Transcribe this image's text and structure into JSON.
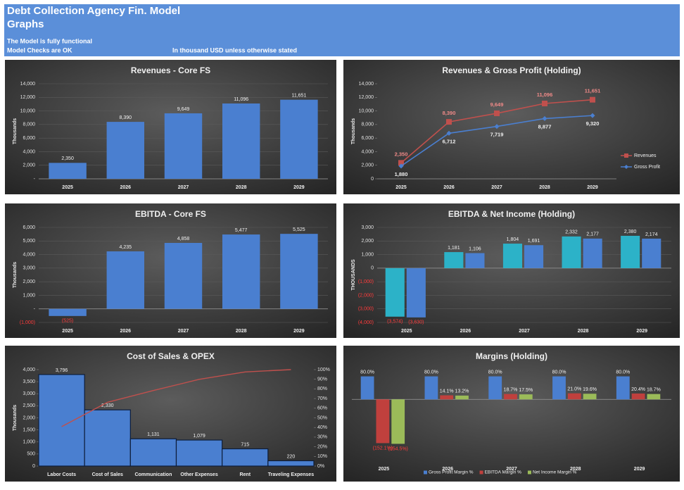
{
  "header": {
    "title": "Debt Collection Agency Fin. Model",
    "subtitle": "Graphs",
    "status": [
      "The Model is fully functional",
      "Model Checks are OK"
    ],
    "units": "In thousand USD unless otherwise stated"
  },
  "chart_data": [
    {
      "type": "bar",
      "title": "Revenues - Core FS",
      "y_label": "Thousands",
      "categories": [
        "2025",
        "2026",
        "2027",
        "2028",
        "2029"
      ],
      "values": [
        2350,
        8390,
        9649,
        11096,
        11651
      ],
      "value_labels": [
        "2,350",
        "8,390",
        "9,649",
        "11,096",
        "11,651"
      ],
      "color": "#4a7fd0",
      "ylim": [
        0,
        14000
      ],
      "yticks": [
        {
          "value": 0,
          "label": "-"
        },
        {
          "value": 2000,
          "label": "2,000"
        },
        {
          "value": 4000,
          "label": "4,000"
        },
        {
          "value": 6000,
          "label": "6,000"
        },
        {
          "value": 8000,
          "label": "8,000"
        },
        {
          "value": 10000,
          "label": "10,000"
        },
        {
          "value": 12000,
          "label": "12,000"
        },
        {
          "value": 14000,
          "label": "14,000"
        }
      ],
      "grid": true
    },
    {
      "type": "line",
      "title": "Revenues & Gross Profit (Holding)",
      "y_label": "Thousands",
      "categories": [
        "2025",
        "2026",
        "2027",
        "2028",
        "2029"
      ],
      "series": [
        {
          "name": "Revenues",
          "color": "#c0504d",
          "marker": "square",
          "values": [
            2350,
            8390,
            9649,
            11096,
            11651
          ],
          "value_labels": [
            "2,350",
            "8,390",
            "9,649",
            "11,096",
            "11,651"
          ]
        },
        {
          "name": "Gross Profit",
          "color": "#4a7fd0",
          "marker": "diamond",
          "values": [
            1880,
            6712,
            7719,
            8877,
            9320
          ],
          "value_labels": [
            "1,880",
            "6,712",
            "7,719",
            "8,877",
            "9,320"
          ]
        }
      ],
      "ylim": [
        0,
        14000
      ],
      "yticks": [
        0,
        {
          "value": 2000,
          "label": "2,000"
        },
        {
          "value": 4000,
          "label": "4,000"
        },
        {
          "value": 6000,
          "label": "6,000"
        },
        {
          "value": 8000,
          "label": "8,000"
        },
        {
          "value": 10000,
          "label": "10,000"
        },
        {
          "value": 12000,
          "label": "12,000"
        },
        {
          "value": 14000,
          "label": "14,000"
        }
      ],
      "grid": false,
      "legend": "right"
    },
    {
      "type": "bar",
      "title": "EBITDA - Core FS",
      "y_label": "Thousands",
      "categories": [
        "2025",
        "2026",
        "2027",
        "2028",
        "2029"
      ],
      "values": [
        -525,
        4235,
        4858,
        5477,
        5525
      ],
      "value_labels": [
        "(525)",
        "4,235",
        "4,858",
        "5,477",
        "5,525"
      ],
      "color": "#4a7fd0",
      "ylim": [
        -1000,
        6000
      ],
      "yticks": [
        {
          "value": -1000,
          "label": "(1,000)"
        },
        {
          "value": 0,
          "label": "-"
        },
        {
          "value": 1000,
          "label": "1,000"
        },
        {
          "value": 2000,
          "label": "2,000"
        },
        {
          "value": 3000,
          "label": "3,000"
        },
        {
          "value": 4000,
          "label": "4,000"
        },
        {
          "value": 5000,
          "label": "5,000"
        },
        {
          "value": 6000,
          "label": "6,000"
        }
      ],
      "grid": true
    },
    {
      "type": "bar",
      "title": "EBITDA & Net Income (Holding)",
      "y_label": "THOUSANDS",
      "categories": [
        "2025",
        "2026",
        "2027",
        "2028",
        "2029"
      ],
      "series": [
        {
          "color": "#2cb2c8",
          "values": [
            -3574,
            1181,
            1804,
            2332,
            2380
          ],
          "value_labels": [
            "(3,574)",
            "1,181",
            "1,804",
            "2,332",
            "2,380"
          ]
        },
        {
          "color": "#4a7fd0",
          "values": [
            -3630,
            1106,
            1691,
            2177,
            2174
          ],
          "value_labels": [
            "(3,630)",
            "1,106",
            "1,691",
            "2,177",
            "2,174"
          ]
        }
      ],
      "ylim": [
        -4000,
        3000
      ],
      "yticks": [
        {
          "value": -4000,
          "label": "(4,000)"
        },
        {
          "value": -3000,
          "label": "(3,000)"
        },
        {
          "value": -2000,
          "label": "(2,000)"
        },
        {
          "value": -1000,
          "label": "(1,000)"
        },
        0,
        {
          "value": 1000,
          "label": "1,000"
        },
        {
          "value": 2000,
          "label": "2,000"
        },
        {
          "value": 3000,
          "label": "3,000"
        }
      ],
      "grid": true
    },
    {
      "type": "bar",
      "title": "Cost of Sales & OPEX",
      "y_label": "Thousands",
      "categories": [
        "Labor Costs",
        "Cost of Sales",
        "Communication",
        "Other Expenses",
        "Rent",
        "Traveling Expenses"
      ],
      "series": [
        {
          "color": "#4a7fd0",
          "values": [
            3796,
            2330,
            1131,
            1079,
            715,
            220
          ],
          "value_labels": [
            "3,796",
            "2,330",
            "1,131",
            "1,079",
            "715",
            "220"
          ]
        },
        {
          "type": "line",
          "axis": "y2",
          "color": "#c0504d",
          "values": [
            40.9,
            66.1,
            78.3,
            89.9,
            97.6,
            100
          ]
        }
      ],
      "ylim": [
        0,
        4000
      ],
      "yticks": [
        0,
        500,
        {
          "value": 1000,
          "label": "1,000"
        },
        {
          "value": 1500,
          "label": "1,500"
        },
        {
          "value": 2000,
          "label": "2,000"
        },
        {
          "value": 2500,
          "label": "2,500"
        },
        {
          "value": 3000,
          "label": "3,000"
        },
        {
          "value": 3500,
          "label": "3,500"
        },
        {
          "value": 4000,
          "label": "4,000"
        }
      ],
      "y2lim": [
        0,
        100
      ],
      "y2ticks": [
        {
          "value": 0,
          "label": "0%"
        },
        {
          "value": 10,
          "label": "10%"
        },
        {
          "value": 20,
          "label": "20%"
        },
        {
          "value": 30,
          "label": "30%"
        },
        {
          "value": 40,
          "label": "40%"
        },
        {
          "value": 50,
          "label": "50%"
        },
        {
          "value": 60,
          "label": "60%"
        },
        {
          "value": 70,
          "label": "70%"
        },
        {
          "value": 80,
          "label": "80%"
        },
        {
          "value": 90,
          "label": "90%"
        },
        {
          "value": 100,
          "label": "100%"
        }
      ],
      "grid": false
    },
    {
      "type": "bar",
      "title": "Margins (Holding)",
      "categories": [
        "2025",
        "2026",
        "2027",
        "2028",
        "2029"
      ],
      "series": [
        {
          "name": "Gross Profit Margin %",
          "color": "#4a7fd0",
          "values": [
            80.0,
            80.0,
            80.0,
            80.0,
            80.0
          ],
          "value_labels": [
            "80.0%",
            "80.0%",
            "80.0%",
            "80.0%",
            "80.0%"
          ]
        },
        {
          "name": "EBITDA Margin %",
          "color": "#c0403d",
          "values": [
            -152.1,
            14.1,
            18.7,
            21.0,
            20.4
          ],
          "value_labels": [
            "(152.1%)",
            "14.1%",
            "18.7%",
            "21.0%",
            "20.4%"
          ]
        },
        {
          "name": "Net Income Margin %",
          "color": "#9bbb59",
          "values": [
            -154.5,
            13.2,
            17.5,
            19.6,
            18.7
          ],
          "value_labels": [
            "(154.5%)",
            "13.2%",
            "17.5%",
            "19.6%",
            "18.7%"
          ]
        }
      ],
      "grid": false,
      "legend": "bottom"
    }
  ]
}
